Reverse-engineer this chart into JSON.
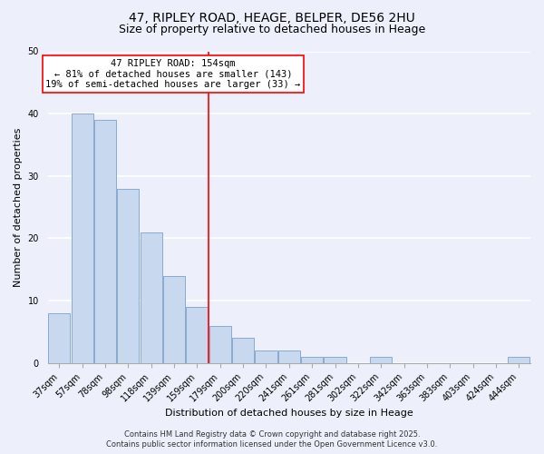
{
  "title": "47, RIPLEY ROAD, HEAGE, BELPER, DE56 2HU",
  "subtitle": "Size of property relative to detached houses in Heage",
  "xlabel": "Distribution of detached houses by size in Heage",
  "ylabel": "Number of detached properties",
  "bar_values": [
    8,
    40,
    39,
    28,
    21,
    14,
    9,
    6,
    4,
    2,
    2,
    1,
    1,
    0,
    1,
    0,
    0,
    0,
    0,
    0,
    1
  ],
  "x_labels": [
    "37sqm",
    "57sqm",
    "78sqm",
    "98sqm",
    "118sqm",
    "139sqm",
    "159sqm",
    "179sqm",
    "200sqm",
    "220sqm",
    "241sqm",
    "261sqm",
    "281sqm",
    "302sqm",
    "322sqm",
    "342sqm",
    "363sqm",
    "383sqm",
    "403sqm",
    "424sqm",
    "444sqm"
  ],
  "bar_color": "#c8d8ee",
  "bar_edge_color": "#8aaacf",
  "ylim": [
    0,
    50
  ],
  "red_line_x": 6.5,
  "annotation_lines": [
    "47 RIPLEY ROAD: 154sqm",
    "← 81% of detached houses are smaller (143)",
    "19% of semi-detached houses are larger (33) →"
  ],
  "footer_line1": "Contains HM Land Registry data © Crown copyright and database right 2025.",
  "footer_line2": "Contains public sector information licensed under the Open Government Licence v3.0.",
  "background_color": "#edf0fa",
  "grid_color": "#ffffff",
  "title_fontsize": 10,
  "subtitle_fontsize": 9,
  "axis_label_fontsize": 8,
  "tick_fontsize": 7,
  "footer_fontsize": 6
}
